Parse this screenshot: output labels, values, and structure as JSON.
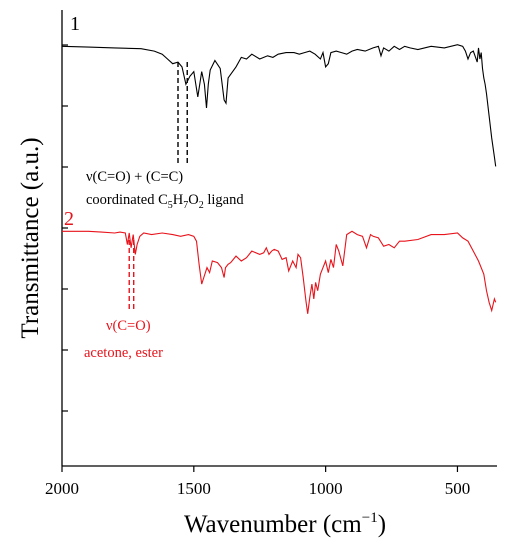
{
  "chart_data": {
    "type": "line",
    "title": "",
    "xlabel": "Wavenumber (cm",
    "xlabel_sup": "−1",
    "xlabel_close": ")",
    "ylabel": "Transmittance (a.u.)",
    "x_reversed": true,
    "xlim": [
      2000,
      350
    ],
    "x_ticks": [
      2000,
      1500,
      1000,
      500
    ],
    "x_tick_labels": [
      "2000",
      "1500",
      "1000",
      "500"
    ],
    "y_ticks_count": 7,
    "grid": false,
    "legend": "none",
    "series": [
      {
        "name": "1",
        "color": "#000000",
        "x": [
          2000,
          1900,
          1800,
          1700,
          1650,
          1620,
          1600,
          1580,
          1560,
          1545,
          1530,
          1515,
          1500,
          1485,
          1470,
          1460,
          1452,
          1445,
          1438,
          1420,
          1400,
          1385,
          1378,
          1370,
          1340,
          1320,
          1300,
          1280,
          1250,
          1220,
          1200,
          1180,
          1150,
          1120,
          1100,
          1080,
          1060,
          1040,
          1020,
          1010,
          1000,
          990,
          980,
          960,
          940,
          920,
          900,
          880,
          850,
          820,
          800,
          790,
          780,
          760,
          740,
          720,
          700,
          680,
          650,
          600,
          550,
          500,
          480,
          470,
          460,
          450,
          440,
          425,
          420,
          415,
          410,
          405,
          400,
          395,
          390,
          380,
          370,
          360,
          355
        ],
        "y": [
          0.96,
          0.955,
          0.95,
          0.945,
          0.93,
          0.91,
          0.88,
          0.85,
          0.86,
          0.83,
          0.72,
          0.77,
          0.8,
          0.64,
          0.8,
          0.72,
          0.57,
          0.72,
          0.81,
          0.87,
          0.82,
          0.62,
          0.6,
          0.76,
          0.83,
          0.89,
          0.88,
          0.91,
          0.88,
          0.9,
          0.89,
          0.91,
          0.92,
          0.92,
          0.91,
          0.92,
          0.93,
          0.91,
          0.88,
          0.92,
          0.83,
          0.85,
          0.92,
          0.93,
          0.92,
          0.91,
          0.93,
          0.94,
          0.93,
          0.95,
          0.96,
          0.9,
          0.95,
          0.93,
          0.96,
          0.94,
          0.96,
          0.95,
          0.94,
          0.96,
          0.95,
          0.97,
          0.96,
          0.93,
          0.88,
          0.92,
          0.93,
          0.86,
          0.95,
          0.88,
          0.92,
          0.82,
          0.76,
          0.72,
          0.66,
          0.52,
          0.38,
          0.26,
          0.2
        ]
      },
      {
        "name": "2",
        "color": "#e8131b",
        "x": [
          2000,
          1950,
          1900,
          1850,
          1800,
          1780,
          1760,
          1752,
          1745,
          1738,
          1730,
          1722,
          1715,
          1705,
          1690,
          1660,
          1620,
          1580,
          1550,
          1520,
          1500,
          1490,
          1480,
          1470,
          1462,
          1450,
          1440,
          1430,
          1410,
          1395,
          1385,
          1380,
          1370,
          1360,
          1340,
          1320,
          1300,
          1280,
          1250,
          1235,
          1225,
          1215,
          1205,
          1195,
          1180,
          1165,
          1150,
          1140,
          1125,
          1112,
          1105,
          1095,
          1085,
          1075,
          1068,
          1060,
          1052,
          1045,
          1038,
          1030,
          1020,
          1010,
          1000,
          990,
          980,
          970,
          960,
          950,
          935,
          920,
          900,
          880,
          860,
          845,
          830,
          820,
          800,
          780,
          760,
          740,
          720,
          700,
          650,
          600,
          550,
          500,
          480,
          460,
          440,
          420,
          400,
          390,
          380,
          370,
          360,
          355
        ],
        "y": [
          0.98,
          0.98,
          0.98,
          0.975,
          0.97,
          0.975,
          0.97,
          0.9,
          0.97,
          0.88,
          0.96,
          0.84,
          0.9,
          0.95,
          0.97,
          0.96,
          0.97,
          0.96,
          0.95,
          0.96,
          0.95,
          0.92,
          0.78,
          0.66,
          0.7,
          0.76,
          0.73,
          0.8,
          0.79,
          0.76,
          0.7,
          0.76,
          0.78,
          0.79,
          0.83,
          0.8,
          0.82,
          0.86,
          0.84,
          0.85,
          0.88,
          0.84,
          0.86,
          0.87,
          0.86,
          0.81,
          0.82,
          0.74,
          0.8,
          0.76,
          0.84,
          0.82,
          0.7,
          0.56,
          0.48,
          0.58,
          0.66,
          0.57,
          0.67,
          0.62,
          0.72,
          0.76,
          0.8,
          0.73,
          0.81,
          0.76,
          0.9,
          0.86,
          0.77,
          0.96,
          0.98,
          0.96,
          0.95,
          0.88,
          0.96,
          0.95,
          0.94,
          0.89,
          0.9,
          0.88,
          0.92,
          0.92,
          0.93,
          0.96,
          0.96,
          0.97,
          0.94,
          0.92,
          0.86,
          0.8,
          0.72,
          0.62,
          0.55,
          0.5,
          0.57,
          0.55
        ]
      }
    ],
    "labels": {
      "series1_number": "1",
      "series2_number": "2",
      "ann1_line1": "ν(C=O) + (C=C)",
      "ann1_line2_pre": "coordinated C",
      "ann1_sub1": "5",
      "ann1_mid1": "H",
      "ann1_sub2": "7",
      "ann1_mid2": "O",
      "ann1_sub3": "2",
      "ann1_post": " ligand",
      "ann2_line1": "ν(C=O)",
      "ann2_line2": "acetone, ester"
    },
    "markers": {
      "series1_dashes_x": [
        1560,
        1525
      ],
      "series2_dashes_x": [
        1745,
        1728
      ]
    }
  }
}
